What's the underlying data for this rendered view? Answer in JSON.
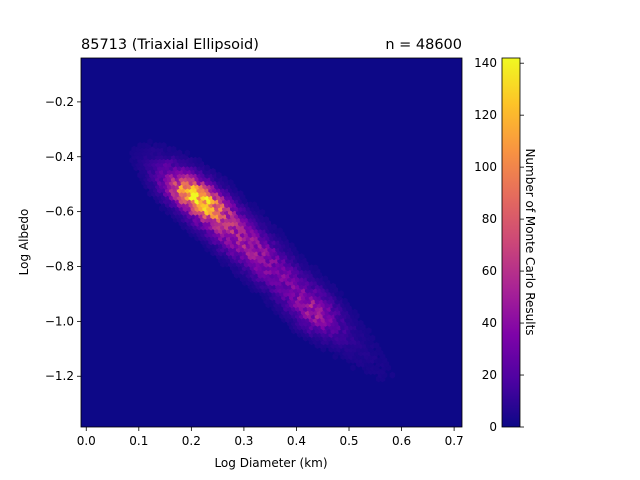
{
  "chart_data": {
    "type": "heatmap",
    "subtype": "hexbin",
    "title_left": "85713 (Triaxial Ellipsoid)",
    "title_right": "n = 48600",
    "xlabel": "Log Diameter (km)",
    "ylabel": "Log Albedo",
    "xlim": [
      -0.01,
      0.715
    ],
    "ylim": [
      -1.385,
      -0.04
    ],
    "xticks": [
      0.0,
      0.1,
      0.2,
      0.3,
      0.4,
      0.5,
      0.6,
      0.7
    ],
    "xtick_labels": [
      "0.0",
      "0.1",
      "0.2",
      "0.3",
      "0.4",
      "0.5",
      "0.6",
      "0.7"
    ],
    "yticks": [
      -0.2,
      -0.4,
      -0.6,
      -0.8,
      -1.0,
      -1.2
    ],
    "ytick_labels": [
      "−0.2",
      "−0.4",
      "−0.6",
      "−0.8",
      "−1.0",
      "−1.2"
    ],
    "colormap": "plasma",
    "background_color": "#0d0887",
    "colorbar": {
      "label": "Number of Monte Carlo Results",
      "min": 0,
      "max": 142,
      "ticks": [
        0,
        20,
        40,
        60,
        80,
        100,
        120,
        140
      ],
      "tick_labels": [
        "0",
        "20",
        "40",
        "60",
        "80",
        "100",
        "120",
        "140"
      ]
    },
    "distribution": {
      "shape": "elongated diagonal cloud",
      "peak": {
        "x": 0.215,
        "y": -0.55,
        "count": 142
      },
      "principal_axis_start": {
        "x": 0.15,
        "y": -0.4
      },
      "principal_axis_end": {
        "x": 0.65,
        "y": -1.32
      },
      "grid": false
    }
  }
}
